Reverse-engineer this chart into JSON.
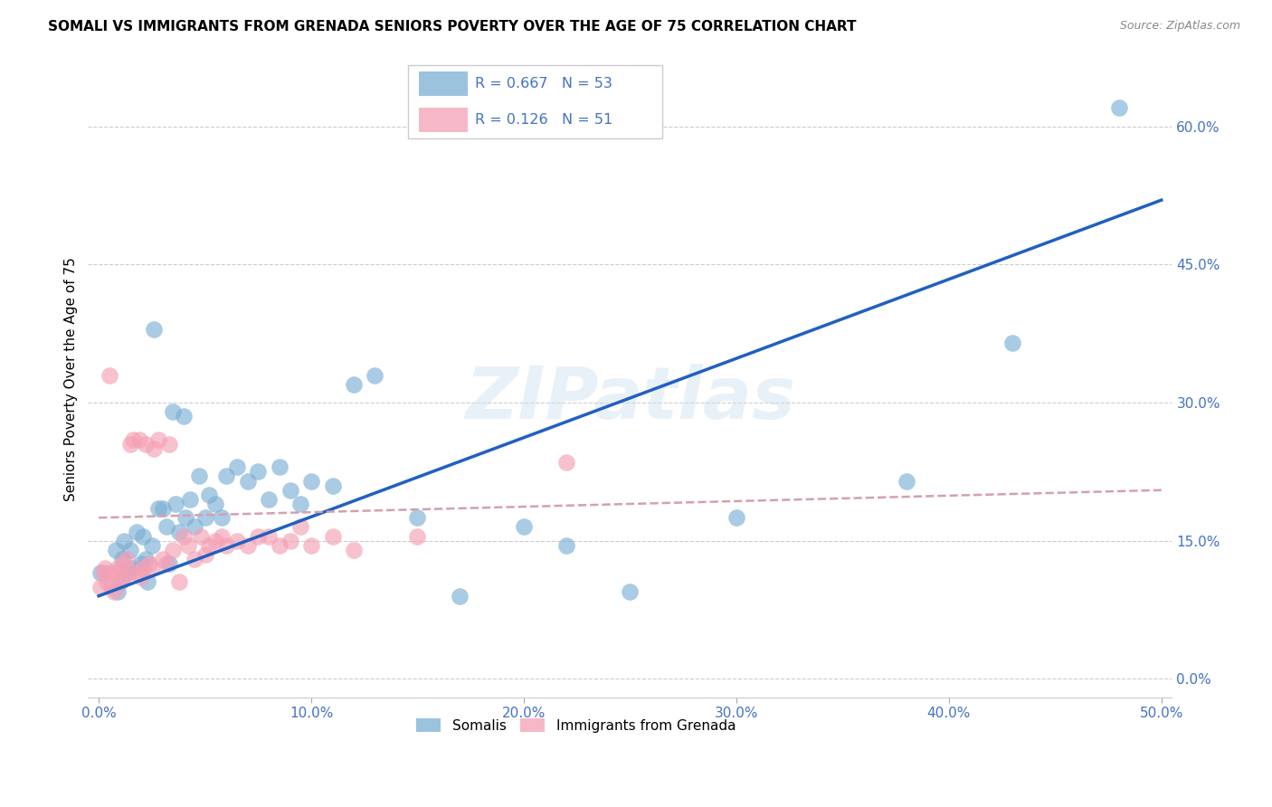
{
  "title": "SOMALI VS IMMIGRANTS FROM GRENADA SENIORS POVERTY OVER THE AGE OF 75 CORRELATION CHART",
  "source": "Source: ZipAtlas.com",
  "ylabel": "Seniors Poverty Over the Age of 75",
  "xlim": [
    -0.005,
    0.505
  ],
  "ylim": [
    -0.02,
    0.67
  ],
  "xticks": [
    0.0,
    0.1,
    0.2,
    0.3,
    0.4,
    0.5
  ],
  "yticks": [
    0.0,
    0.15,
    0.3,
    0.45,
    0.6
  ],
  "xtick_labels": [
    "0.0%",
    "10.0%",
    "20.0%",
    "30.0%",
    "40.0%",
    "50.0%"
  ],
  "ytick_labels": [
    "0.0%",
    "15.0%",
    "30.0%",
    "45.0%",
    "60.0%"
  ],
  "somali_color": "#7bafd4",
  "grenada_color": "#f4a0b5",
  "trendline_somali_color": "#2060c0",
  "trendline_grenada_color": "#d4a0b0",
  "watermark": "ZIPatlas",
  "legend_somali_R": "0.667",
  "legend_somali_N": "53",
  "legend_grenada_R": "0.126",
  "legend_grenada_N": "51",
  "somali_trendline": [
    0.09,
    0.52
  ],
  "grenada_trendline": [
    0.175,
    0.205
  ],
  "somali_x": [
    0.001,
    0.008,
    0.009,
    0.01,
    0.011,
    0.012,
    0.013,
    0.015,
    0.016,
    0.018,
    0.02,
    0.021,
    0.022,
    0.023,
    0.025,
    0.026,
    0.028,
    0.03,
    0.032,
    0.033,
    0.035,
    0.036,
    0.038,
    0.04,
    0.041,
    0.043,
    0.045,
    0.047,
    0.05,
    0.052,
    0.055,
    0.058,
    0.06,
    0.065,
    0.07,
    0.075,
    0.08,
    0.085,
    0.09,
    0.095,
    0.1,
    0.11,
    0.12,
    0.13,
    0.15,
    0.17,
    0.2,
    0.22,
    0.25,
    0.3,
    0.38,
    0.43,
    0.48
  ],
  "somali_y": [
    0.115,
    0.14,
    0.095,
    0.105,
    0.13,
    0.15,
    0.115,
    0.14,
    0.12,
    0.16,
    0.125,
    0.155,
    0.13,
    0.105,
    0.145,
    0.38,
    0.185,
    0.185,
    0.165,
    0.125,
    0.29,
    0.19,
    0.16,
    0.285,
    0.175,
    0.195,
    0.165,
    0.22,
    0.175,
    0.2,
    0.19,
    0.175,
    0.22,
    0.23,
    0.215,
    0.225,
    0.195,
    0.23,
    0.205,
    0.19,
    0.215,
    0.21,
    0.32,
    0.33,
    0.175,
    0.09,
    0.165,
    0.145,
    0.095,
    0.175,
    0.215,
    0.365,
    0.62
  ],
  "grenada_x": [
    0.001,
    0.002,
    0.003,
    0.004,
    0.005,
    0.006,
    0.007,
    0.008,
    0.009,
    0.01,
    0.011,
    0.012,
    0.013,
    0.014,
    0.015,
    0.016,
    0.018,
    0.019,
    0.02,
    0.021,
    0.022,
    0.024,
    0.025,
    0.026,
    0.028,
    0.03,
    0.032,
    0.033,
    0.035,
    0.038,
    0.04,
    0.042,
    0.045,
    0.048,
    0.05,
    0.052,
    0.055,
    0.058,
    0.06,
    0.065,
    0.07,
    0.075,
    0.08,
    0.085,
    0.09,
    0.095,
    0.1,
    0.11,
    0.12,
    0.15,
    0.22
  ],
  "grenada_y": [
    0.1,
    0.115,
    0.12,
    0.105,
    0.115,
    0.1,
    0.095,
    0.115,
    0.12,
    0.105,
    0.125,
    0.11,
    0.13,
    0.115,
    0.255,
    0.26,
    0.115,
    0.26,
    0.11,
    0.12,
    0.255,
    0.125,
    0.12,
    0.25,
    0.26,
    0.13,
    0.125,
    0.255,
    0.14,
    0.105,
    0.155,
    0.145,
    0.13,
    0.155,
    0.135,
    0.145,
    0.15,
    0.155,
    0.145,
    0.15,
    0.145,
    0.155,
    0.155,
    0.145,
    0.15,
    0.165,
    0.145,
    0.155,
    0.14,
    0.155,
    0.235
  ],
  "grenada_outlier_x": [
    0.005
  ],
  "grenada_outlier_y": [
    0.33
  ]
}
